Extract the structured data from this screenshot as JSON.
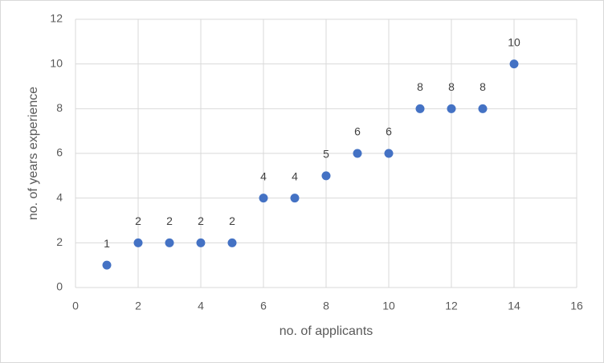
{
  "chart_data": {
    "type": "scatter",
    "xlabel": "no. of applicants",
    "ylabel": "no. of years experience",
    "x": [
      1,
      2,
      3,
      4,
      5,
      6,
      7,
      8,
      9,
      10,
      11,
      12,
      13,
      14
    ],
    "values": [
      1,
      2,
      2,
      2,
      2,
      4,
      4,
      5,
      6,
      6,
      8,
      8,
      8,
      10
    ],
    "color": "#4472c4",
    "xlim": [
      0,
      16
    ],
    "xticks": [
      0,
      2,
      4,
      6,
      8,
      10,
      12,
      14,
      16
    ],
    "ylim": [
      0,
      12
    ],
    "yticks": [
      0,
      2,
      4,
      6,
      8,
      10,
      12
    ],
    "grid": true
  }
}
